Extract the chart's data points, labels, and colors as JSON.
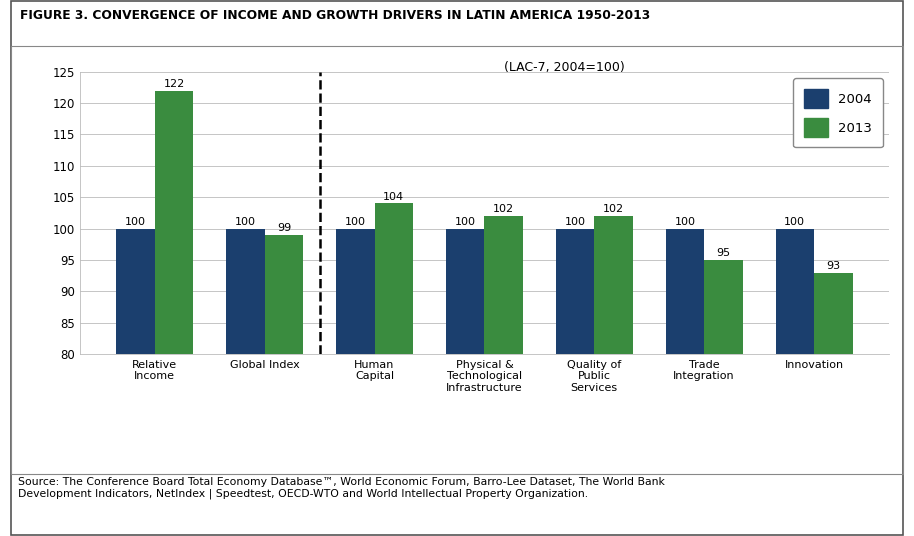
{
  "title": "FIGURE 3. CONVERGENCE OF INCOME AND GROWTH DRIVERS IN LATIN AMERICA 1950-2013",
  "subtitle": "(LAC-7, 2004=100)",
  "categories": [
    "Relative\nIncome",
    "Global Index",
    "Human\nCapital",
    "Physical &\nTechnological\nInfrastructure",
    "Quality of\nPublic\nServices",
    "Trade\nIntegration",
    "Innovation"
  ],
  "values_2004": [
    100,
    100,
    100,
    100,
    100,
    100,
    100
  ],
  "values_2013": [
    122,
    99,
    104,
    102,
    102,
    95,
    93
  ],
  "color_2004": "#1b3f6e",
  "color_2013": "#3a8c3f",
  "ylim": [
    80,
    125
  ],
  "yticks": [
    80,
    85,
    90,
    95,
    100,
    105,
    110,
    115,
    120,
    125
  ],
  "legend_labels": [
    "2004",
    "2013"
  ],
  "source_text": "Source: The Conference Board Total Economy Database™, World Economic Forum, Barro-Lee Dataset, The World Bank\nDevelopment Indicators, NetIndex | Speedtest, OECD-WTO and World Intellectual Property Organization.",
  "bar_width": 0.35,
  "background_color": "#ffffff"
}
